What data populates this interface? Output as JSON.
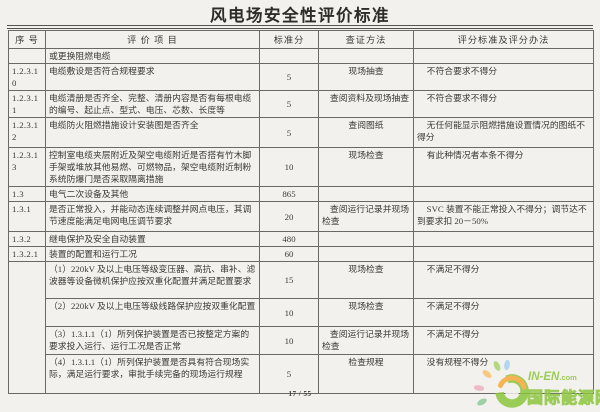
{
  "title": "风电场安全性评价标准",
  "table": {
    "headers": [
      "序  号",
      "评 价 项 目",
      "标准分",
      "查证方法",
      "评分标准及评分办法"
    ],
    "rows": [
      {
        "no": "",
        "item": "或更换阻燃电缆",
        "score": "",
        "method": "",
        "criteria": ""
      },
      {
        "no": "1.2.3.10",
        "item": "电缆敷设是否符合规程要求",
        "score": "5",
        "method": "现场抽查",
        "criteria": "不符合要求不得分"
      },
      {
        "no": "1.2.3.11",
        "item": "电缆清册是否齐全、完整、清册内容是否有每根电缆的编号、起止点、型式、电压、芯数、长度等",
        "score": "5",
        "method": "查阅资料及现场抽查",
        "criteria": "不符合要求不得分"
      },
      {
        "no": "1.2.3.12",
        "item": "电缆防火阻燃措施设计安装图是否齐全",
        "score": "5",
        "method": "查阅图纸",
        "criteria": "无任何能显示阻燃措施设置情况的图纸不得分"
      },
      {
        "no": "1.2.3.13",
        "item": "控制室电缆夹层附近及架空电缆附近是否搭有竹木脚手架或堆放其他易燃、可燃物品，架空电缆附近制粉系统防爆门是否采取隔离措施",
        "score": "10",
        "method": "现场检查",
        "criteria": "有此种情况者本条不得分"
      },
      {
        "no": "1.3",
        "item": "电气二次设备及其他",
        "score": "865",
        "method": "",
        "criteria": ""
      },
      {
        "no": "1.3.1",
        "item": "是否正常投入，并能动态连续调整并网点电压，其调节速度能满足电网电压调节要求",
        "score": "20",
        "method": "查阅运行记录并现场检查",
        "criteria": "SVC 装置不能正常投入不得分；调节达不到要求扣 20－50%"
      },
      {
        "no": "1.3.2",
        "item": "继电保护及安全自动装置",
        "score": "480",
        "method": "",
        "criteria": ""
      },
      {
        "no": "1.3.2.1",
        "item": "装置的配置和运行工况",
        "score": "60",
        "method": "",
        "criteria": ""
      },
      {
        "no": "",
        "no_span": 4,
        "item": "（1）220kV 及以上电压等级变压器、高抗、串补、滤波器等设备微机保护应按双重化配置并满足配置要求",
        "score": "15",
        "method": "现场检查",
        "criteria": "不满足不得分"
      },
      {
        "no": null,
        "item": "（2）220kV 及以上电压等级线路保护应按双重化配置",
        "score": "10",
        "method": "现场检查",
        "criteria": "不满足不得分"
      },
      {
        "no": null,
        "item": "（3）1.3.1.1（1）所列保护装置是否已按整定方案的要求投入运行、运行工况是否正常",
        "score": "10",
        "method": "查阅运行记录并现场检查",
        "criteria": "不满足不得分"
      },
      {
        "no": null,
        "item": "（4）1.3.1.1（1）所列保护装置是否具有符合现场实际，满足运行要求，审批手续完备的现场运行规程",
        "score": "5",
        "method": "检查规程",
        "criteria": "没有规程不得分"
      }
    ]
  },
  "footer": {
    "page_indicator": "17 / 55"
  },
  "logo": {
    "name_latin": "IN-EN",
    "name_tld": ".com",
    "name_cn": "国际能源网",
    "green": "#8dc63f",
    "orange": "#f5a93a",
    "pink": "#eeb0c2",
    "blue": "#a9d3ee",
    "leaf_green": "#abd36d",
    "teal": "#8fcb97"
  }
}
